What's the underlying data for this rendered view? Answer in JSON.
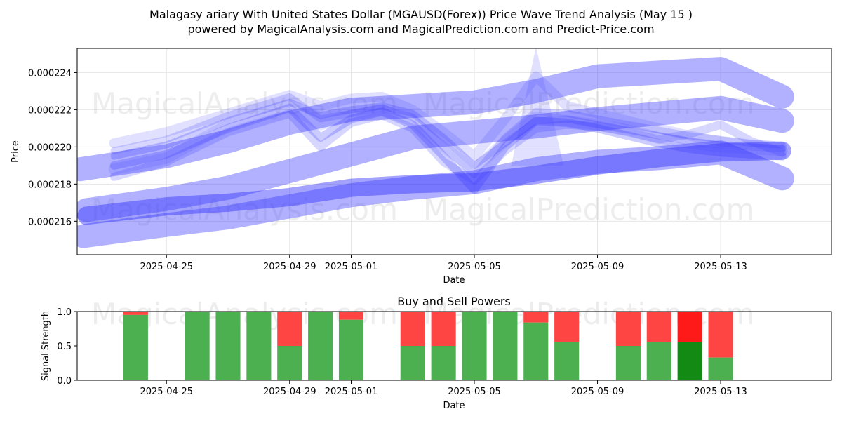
{
  "title_line1": "Malagasy ariary With United States Dollar (MGAUSD(Forex)) Price Wave Trend Analysis (May 15 )",
  "title_line2": "powered by MagicalAnalysis.com and MagicalPrediction.com and Predict-Price.com",
  "watermarks": [
    "MagicalAnalysis.com",
    "MagicalPrediction.com"
  ],
  "colors": {
    "wave": "#3333ff",
    "buy": "#4caf50",
    "sell": "#ff4444",
    "buy_dark": "#138a13",
    "sell_dark": "#ff1a1a"
  },
  "chart_data": [
    {
      "type": "line",
      "title": "",
      "xlabel": "Date",
      "ylabel": "Price",
      "grid": true,
      "xlim_day": [
        -1.9,
        22.6
      ],
      "ylim": [
        0.0002142,
        0.0002253
      ],
      "x_ticks": [
        {
          "day": 1,
          "label": "2025-04-25"
        },
        {
          "day": 5,
          "label": "2025-04-29"
        },
        {
          "day": 7,
          "label": "2025-05-01"
        },
        {
          "day": 11,
          "label": "2025-05-05"
        },
        {
          "day": 15,
          "label": "2025-05-09"
        },
        {
          "day": 19,
          "label": "2025-05-13"
        }
      ],
      "y_ticks": [
        {
          "value": 0.000216,
          "label": "0.000216"
        },
        {
          "value": 0.000218,
          "label": "0.000218"
        },
        {
          "value": 0.00022,
          "label": "0.000220"
        },
        {
          "value": 0.000222,
          "label": "0.000222"
        },
        {
          "value": 0.000224,
          "label": "0.000224"
        }
      ],
      "series": [
        {
          "name": "wave-1",
          "days": [
            -0.7,
            1,
            3,
            5,
            6,
            7,
            8,
            9,
            10,
            11,
            12,
            13,
            14,
            15,
            16,
            17,
            18,
            19,
            20,
            21
          ],
          "values": [
            0.0002195,
            0.0002201,
            0.0002214,
            0.0002224,
            0.0002217,
            0.000222,
            0.0002222,
            0.0002218,
            0.0002205,
            0.000219,
            0.0002202,
            0.0002214,
            0.0002215,
            0.0002212,
            0.0002209,
            0.0002206,
            0.0002203,
            0.0002201,
            0.00022,
            0.0002199
          ],
          "width": 10,
          "opacity": 0.25
        },
        {
          "name": "wave-2",
          "days": [
            -0.7,
            1,
            3,
            5,
            6,
            7,
            8,
            9,
            10,
            11,
            12,
            13,
            14,
            15,
            16,
            17,
            18,
            19,
            20,
            21
          ],
          "values": [
            0.0002198,
            0.0002204,
            0.0002217,
            0.0002227,
            0.0002215,
            0.0002218,
            0.0002221,
            0.0002216,
            0.00022,
            0.0002185,
            0.0002205,
            0.0002219,
            0.0002218,
            0.0002215,
            0.0002212,
            0.0002209,
            0.0002206,
            0.0002204,
            0.0002202,
            0.0002201
          ],
          "width": 10,
          "opacity": 0.2
        },
        {
          "name": "wave-3",
          "days": [
            -0.7,
            1,
            3,
            5,
            6,
            7,
            8,
            9,
            10,
            11,
            12,
            13,
            14,
            15,
            16,
            17,
            18,
            19,
            20,
            21
          ],
          "values": [
            0.000219,
            0.0002196,
            0.000221,
            0.0002221,
            0.0002205,
            0.0002215,
            0.0002219,
            0.0002212,
            0.0002195,
            0.0002177,
            0.00022,
            0.0002214,
            0.0002213,
            0.000221,
            0.0002206,
            0.0002202,
            0.0002199,
            0.0002197,
            0.0002196,
            0.0002195
          ],
          "width": 12,
          "opacity": 0.25
        },
        {
          "name": "wave-4",
          "days": [
            -0.7,
            1,
            3,
            5,
            6,
            7,
            8,
            9,
            10,
            11,
            12,
            13,
            14,
            15,
            16,
            17,
            18,
            19,
            20,
            21
          ],
          "values": [
            0.0002202,
            0.0002208,
            0.0002218,
            0.0002228,
            0.0002222,
            0.0002226,
            0.0002227,
            0.000222,
            0.0002208,
            0.0002195,
            0.0002215,
            0.0002238,
            0.0002222,
            0.0002218,
            0.0002214,
            0.000221,
            0.0002206,
            0.0002203,
            0.0002201,
            0.00022
          ],
          "width": 14,
          "opacity": 0.15
        },
        {
          "name": "wave-5",
          "days": [
            -0.7,
            1,
            3,
            5,
            6,
            7,
            8,
            9,
            10,
            11,
            12,
            13,
            14,
            15,
            16,
            17,
            18,
            19,
            20,
            21
          ],
          "values": [
            0.0002184,
            0.0002192,
            0.0002208,
            0.0002218,
            0.00022,
            0.0002213,
            0.0002217,
            0.000221,
            0.0002192,
            0.0002182,
            0.0002198,
            0.000221,
            0.0002212,
            0.0002211,
            0.0002208,
            0.0002204,
            0.0002207,
            0.0002212,
            0.0002203,
            0.0002197
          ],
          "width": 12,
          "opacity": 0.2
        },
        {
          "name": "wave-6",
          "days": [
            -0.7,
            1,
            3,
            5,
            6,
            7,
            8,
            9,
            10,
            11,
            12,
            13,
            14,
            15,
            16,
            17,
            18,
            19,
            20,
            21
          ],
          "values": [
            0.0002188,
            0.0002194,
            0.0002212,
            0.0002222,
            0.0002212,
            0.0002217,
            0.000222,
            0.0002214,
            0.00022,
            0.0002188,
            0.0002203,
            0.0002216,
            0.0002214,
            0.0002212,
            0.0002209,
            0.0002205,
            0.0002202,
            0.00022,
            0.0002199,
            0.0002198
          ],
          "width": 16,
          "opacity": 0.12
        },
        {
          "name": "trend-top",
          "days": [
            -1.8,
            1,
            3,
            5,
            7,
            9,
            11,
            13,
            15,
            17,
            19,
            21
          ],
          "values": [
            0.0002188,
            0.0002195,
            0.0002203,
            0.0002213,
            0.000222,
            0.0002222,
            0.0002224,
            0.000223,
            0.0002238,
            0.000224,
            0.0002242,
            0.0002227
          ],
          "width": 34,
          "opacity": 0.38
        },
        {
          "name": "trend-mid",
          "days": [
            -1.6,
            1,
            3,
            5,
            7,
            9,
            11,
            13,
            15,
            17,
            19,
            21
          ],
          "values": [
            0.0002166,
            0.0002172,
            0.0002178,
            0.0002187,
            0.0002196,
            0.0002205,
            0.0002208,
            0.0002211,
            0.0002215,
            0.0002218,
            0.0002221,
            0.0002214
          ],
          "width": 34,
          "opacity": 0.38
        },
        {
          "name": "trend-low",
          "days": [
            -1.7,
            1,
            3,
            5,
            7,
            9,
            11,
            13,
            15,
            17,
            19,
            21
          ],
          "values": [
            0.0002152,
            0.0002158,
            0.0002162,
            0.0002168,
            0.0002174,
            0.0002178,
            0.0002181,
            0.0002188,
            0.0002192,
            0.0002194,
            0.0002197,
            0.0002183
          ],
          "width": 34,
          "opacity": 0.38
        },
        {
          "name": "trend-band",
          "days": [
            -1.6,
            1,
            3,
            5,
            7,
            9,
            11,
            13,
            15,
            17,
            19,
            21
          ],
          "values": [
            0.0002163,
            0.0002168,
            0.000217,
            0.0002173,
            0.0002178,
            0.000218,
            0.0002181,
            0.0002185,
            0.000219,
            0.0002194,
            0.0002197,
            0.0002198
          ],
          "width": 26,
          "opacity": 0.45
        }
      ],
      "wedges": [
        {
          "name": "spike",
          "days": [
            12.2,
            13.9,
            13.0
          ],
          "values": [
            0.000219,
            0.000219,
            0.0002254
          ],
          "opacity": 0.15
        }
      ]
    },
    {
      "type": "bar",
      "title": "Buy and Sell Powers",
      "xlabel": "Date",
      "ylabel": "Signal Strength",
      "ylim": [
        0.0,
        1.0
      ],
      "xlim_day": [
        -1.9,
        22.6
      ],
      "y_ticks": [
        {
          "value": 0.0,
          "label": "0.0"
        },
        {
          "value": 0.5,
          "label": "0.5"
        },
        {
          "value": 1.0,
          "label": "1.0"
        }
      ],
      "x_ticks": [
        {
          "day": 1,
          "label": "2025-04-25"
        },
        {
          "day": 5,
          "label": "2025-04-29"
        },
        {
          "day": 7,
          "label": "2025-05-01"
        },
        {
          "day": 11,
          "label": "2025-05-05"
        },
        {
          "day": 15,
          "label": "2025-05-09"
        },
        {
          "day": 19,
          "label": "2025-05-13"
        }
      ],
      "bars": [
        {
          "day": 0,
          "buy": 0.95,
          "dark": false
        },
        {
          "day": 2,
          "buy": 1.0,
          "dark": false
        },
        {
          "day": 3,
          "buy": 1.0,
          "dark": false
        },
        {
          "day": 4,
          "buy": 1.0,
          "dark": false
        },
        {
          "day": 5,
          "buy": 0.5,
          "dark": false
        },
        {
          "day": 6,
          "buy": 1.0,
          "dark": false
        },
        {
          "day": 7,
          "buy": 0.88,
          "dark": false
        },
        {
          "day": 9,
          "buy": 0.5,
          "dark": false
        },
        {
          "day": 10,
          "buy": 0.5,
          "dark": false
        },
        {
          "day": 11,
          "buy": 1.0,
          "dark": false
        },
        {
          "day": 12,
          "buy": 1.0,
          "dark": false
        },
        {
          "day": 13,
          "buy": 0.84,
          "dark": false
        },
        {
          "day": 14,
          "buy": 0.56,
          "dark": false
        },
        {
          "day": 16,
          "buy": 0.5,
          "dark": false
        },
        {
          "day": 17,
          "buy": 0.56,
          "dark": false
        },
        {
          "day": 18,
          "buy": 0.56,
          "dark": true
        },
        {
          "day": 19,
          "buy": 0.33,
          "dark": false
        }
      ]
    }
  ]
}
